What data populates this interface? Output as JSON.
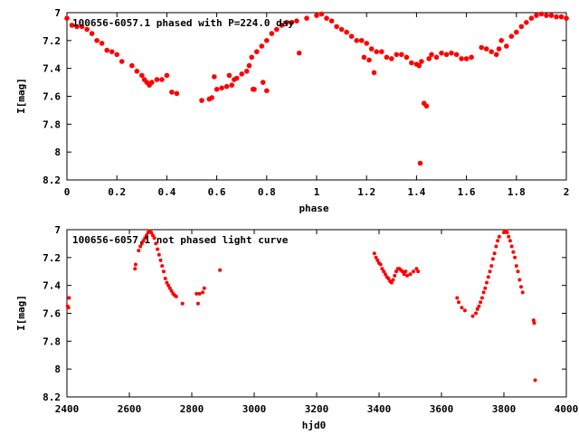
{
  "chart_data": [
    {
      "type": "scatter",
      "title": "100656-6057.1 phased with P=224.0 day",
      "xlabel": "phase",
      "ylabel": "I[mag]",
      "xlim": [
        0,
        2
      ],
      "ylim": [
        8.2,
        7
      ],
      "y_inverted": true,
      "grid": false,
      "marker_color": "#ff0000",
      "x_ticks": [
        "0",
        "0.2",
        "0.4",
        "0.6",
        "0.8",
        "1",
        "1.2",
        "1.4",
        "1.6",
        "1.8",
        "2"
      ],
      "y_ticks": [
        "7",
        "7.2",
        "7.4",
        "7.6",
        "7.8",
        "8",
        "8.2"
      ],
      "points": [
        [
          0.0,
          7.04
        ],
        [
          0.02,
          7.09
        ],
        [
          0.04,
          7.1
        ],
        [
          0.06,
          7.1
        ],
        [
          0.08,
          7.12
        ],
        [
          0.1,
          7.15
        ],
        [
          0.12,
          7.2
        ],
        [
          0.14,
          7.22
        ],
        [
          0.16,
          7.27
        ],
        [
          0.18,
          7.28
        ],
        [
          0.2,
          7.3
        ],
        [
          0.22,
          7.35
        ],
        [
          0.26,
          7.38
        ],
        [
          0.28,
          7.42
        ],
        [
          0.3,
          7.45
        ],
        [
          0.31,
          7.48
        ],
        [
          0.32,
          7.5
        ],
        [
          0.33,
          7.52
        ],
        [
          0.34,
          7.5
        ],
        [
          0.36,
          7.48
        ],
        [
          0.38,
          7.48
        ],
        [
          0.4,
          7.45
        ],
        [
          0.42,
          7.57
        ],
        [
          0.44,
          7.58
        ],
        [
          0.54,
          7.63
        ],
        [
          0.57,
          7.62
        ],
        [
          0.58,
          7.61
        ],
        [
          0.59,
          7.46
        ],
        [
          0.6,
          7.55
        ],
        [
          0.62,
          7.54
        ],
        [
          0.64,
          7.53
        ],
        [
          0.65,
          7.45
        ],
        [
          0.66,
          7.52
        ],
        [
          0.67,
          7.48
        ],
        [
          0.68,
          7.47
        ],
        [
          0.7,
          7.44
        ],
        [
          0.72,
          7.42
        ],
        [
          0.73,
          7.38
        ],
        [
          0.74,
          7.32
        ],
        [
          0.745,
          7.55
        ],
        [
          0.75,
          7.55
        ],
        [
          0.76,
          7.28
        ],
        [
          0.78,
          7.24
        ],
        [
          0.785,
          7.5
        ],
        [
          0.8,
          7.2
        ],
        [
          0.8,
          7.56
        ],
        [
          0.82,
          7.15
        ],
        [
          0.84,
          7.12
        ],
        [
          0.86,
          7.09
        ],
        [
          0.88,
          7.07
        ],
        [
          0.9,
          7.07
        ],
        [
          0.92,
          7.06
        ],
        [
          0.93,
          7.29
        ],
        [
          0.96,
          7.04
        ],
        [
          1.0,
          7.02
        ],
        [
          1.02,
          7.01
        ],
        [
          1.04,
          7.04
        ],
        [
          1.06,
          7.06
        ],
        [
          1.08,
          7.1
        ],
        [
          1.1,
          7.12
        ],
        [
          1.12,
          7.14
        ],
        [
          1.14,
          7.17
        ],
        [
          1.16,
          7.2
        ],
        [
          1.18,
          7.2
        ],
        [
          1.19,
          7.32
        ],
        [
          1.2,
          7.22
        ],
        [
          1.21,
          7.34
        ],
        [
          1.22,
          7.26
        ],
        [
          1.23,
          7.43
        ],
        [
          1.24,
          7.28
        ],
        [
          1.26,
          7.28
        ],
        [
          1.28,
          7.32
        ],
        [
          1.3,
          7.33
        ],
        [
          1.32,
          7.3
        ],
        [
          1.34,
          7.3
        ],
        [
          1.36,
          7.32
        ],
        [
          1.38,
          7.36
        ],
        [
          1.4,
          7.37
        ],
        [
          1.41,
          7.38
        ],
        [
          1.415,
          8.08
        ],
        [
          1.42,
          7.35
        ],
        [
          1.43,
          7.65
        ],
        [
          1.44,
          7.67
        ],
        [
          1.45,
          7.33
        ],
        [
          1.46,
          7.3
        ],
        [
          1.48,
          7.32
        ],
        [
          1.5,
          7.29
        ],
        [
          1.52,
          7.3
        ],
        [
          1.54,
          7.29
        ],
        [
          1.56,
          7.3
        ],
        [
          1.58,
          7.33
        ],
        [
          1.6,
          7.33
        ],
        [
          1.62,
          7.32
        ],
        [
          1.66,
          7.25
        ],
        [
          1.68,
          7.26
        ],
        [
          1.7,
          7.28
        ],
        [
          1.72,
          7.3
        ],
        [
          1.73,
          7.26
        ],
        [
          1.74,
          7.2
        ],
        [
          1.76,
          7.24
        ],
        [
          1.78,
          7.17
        ],
        [
          1.8,
          7.14
        ],
        [
          1.82,
          7.1
        ],
        [
          1.84,
          7.07
        ],
        [
          1.86,
          7.04
        ],
        [
          1.88,
          7.02
        ],
        [
          1.9,
          7.01
        ],
        [
          1.92,
          7.02
        ],
        [
          1.94,
          7.02
        ],
        [
          1.96,
          7.03
        ],
        [
          1.98,
          7.03
        ],
        [
          2.0,
          7.04
        ]
      ]
    },
    {
      "type": "scatter",
      "title": "100656-6057.1 not phased light curve",
      "xlabel": "hjd0",
      "ylabel": "I[mag]",
      "xlim": [
        2400,
        4000
      ],
      "ylim": [
        8.2,
        7
      ],
      "y_inverted": true,
      "grid": false,
      "marker_color": "#ff0000",
      "x_ticks": [
        "2400",
        "2600",
        "2800",
        "3000",
        "3200",
        "3400",
        "3600",
        "3800",
        "4000"
      ],
      "y_ticks": [
        "7",
        "7.2",
        "7.4",
        "7.6",
        "7.8",
        "8",
        "8.2"
      ],
      "points": [
        [
          2402,
          7.55
        ],
        [
          2405,
          7.56
        ],
        [
          2407,
          7.49
        ],
        [
          2618,
          7.28
        ],
        [
          2620,
          7.25
        ],
        [
          2630,
          7.15
        ],
        [
          2635,
          7.12
        ],
        [
          2640,
          7.1
        ],
        [
          2645,
          7.08
        ],
        [
          2650,
          7.06
        ],
        [
          2655,
          7.04
        ],
        [
          2660,
          7.02
        ],
        [
          2665,
          7.01
        ],
        [
          2670,
          7.02
        ],
        [
          2675,
          7.04
        ],
        [
          2680,
          7.06
        ],
        [
          2685,
          7.1
        ],
        [
          2690,
          7.14
        ],
        [
          2695,
          7.18
        ],
        [
          2700,
          7.22
        ],
        [
          2705,
          7.26
        ],
        [
          2710,
          7.3
        ],
        [
          2715,
          7.35
        ],
        [
          2720,
          7.38
        ],
        [
          2725,
          7.4
        ],
        [
          2730,
          7.42
        ],
        [
          2735,
          7.44
        ],
        [
          2740,
          7.46
        ],
        [
          2745,
          7.47
        ],
        [
          2750,
          7.48
        ],
        [
          2770,
          7.53
        ],
        [
          2815,
          7.46
        ],
        [
          2820,
          7.53
        ],
        [
          2825,
          7.46
        ],
        [
          2835,
          7.45
        ],
        [
          2840,
          7.42
        ],
        [
          2890,
          7.29
        ],
        [
          3385,
          7.17
        ],
        [
          3390,
          7.2
        ],
        [
          3395,
          7.22
        ],
        [
          3400,
          7.24
        ],
        [
          3405,
          7.25
        ],
        [
          3410,
          7.28
        ],
        [
          3415,
          7.3
        ],
        [
          3420,
          7.32
        ],
        [
          3425,
          7.34
        ],
        [
          3430,
          7.35
        ],
        [
          3435,
          7.37
        ],
        [
          3440,
          7.38
        ],
        [
          3445,
          7.36
        ],
        [
          3450,
          7.33
        ],
        [
          3455,
          7.3
        ],
        [
          3460,
          7.28
        ],
        [
          3465,
          7.28
        ],
        [
          3470,
          7.29
        ],
        [
          3475,
          7.3
        ],
        [
          3480,
          7.32
        ],
        [
          3485,
          7.3
        ],
        [
          3490,
          7.33
        ],
        [
          3500,
          7.32
        ],
        [
          3510,
          7.3
        ],
        [
          3520,
          7.28
        ],
        [
          3525,
          7.3
        ],
        [
          3650,
          7.49
        ],
        [
          3655,
          7.52
        ],
        [
          3665,
          7.56
        ],
        [
          3675,
          7.58
        ],
        [
          3700,
          7.62
        ],
        [
          3710,
          7.6
        ],
        [
          3715,
          7.57
        ],
        [
          3720,
          7.55
        ],
        [
          3725,
          7.52
        ],
        [
          3730,
          7.49
        ],
        [
          3735,
          7.45
        ],
        [
          3740,
          7.42
        ],
        [
          3745,
          7.38
        ],
        [
          3750,
          7.34
        ],
        [
          3755,
          7.3
        ],
        [
          3760,
          7.26
        ],
        [
          3765,
          7.21
        ],
        [
          3770,
          7.17
        ],
        [
          3775,
          7.12
        ],
        [
          3780,
          7.08
        ],
        [
          3785,
          7.05
        ],
        [
          3800,
          7.02
        ],
        [
          3805,
          7.01
        ],
        [
          3810,
          7.02
        ],
        [
          3815,
          7.05
        ],
        [
          3820,
          7.08
        ],
        [
          3825,
          7.12
        ],
        [
          3830,
          7.16
        ],
        [
          3835,
          7.2
        ],
        [
          3840,
          7.26
        ],
        [
          3845,
          7.3
        ],
        [
          3850,
          7.36
        ],
        [
          3855,
          7.41
        ],
        [
          3860,
          7.45
        ],
        [
          3895,
          7.65
        ],
        [
          3897,
          7.67
        ],
        [
          3900,
          8.08
        ]
      ]
    }
  ]
}
